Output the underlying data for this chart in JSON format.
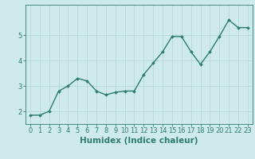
{
  "x": [
    0,
    1,
    2,
    3,
    4,
    5,
    6,
    7,
    8,
    9,
    10,
    11,
    12,
    13,
    14,
    15,
    16,
    17,
    18,
    19,
    20,
    21,
    22,
    23
  ],
  "y": [
    1.85,
    1.85,
    2.0,
    2.8,
    3.0,
    3.3,
    3.2,
    2.8,
    2.65,
    2.75,
    2.8,
    2.8,
    3.45,
    3.9,
    4.35,
    4.95,
    4.95,
    4.35,
    3.85,
    4.35,
    4.95,
    5.6,
    5.3,
    5.3
  ],
  "line_color": "#2e7d6e",
  "marker": "D",
  "marker_size": 2.0,
  "bg_color": "#ceeaea",
  "grid_color": "#b8d8d8",
  "xlabel": "Humidex (Indice chaleur)",
  "ylim": [
    1.5,
    6.2
  ],
  "xlim": [
    -0.5,
    23.5
  ],
  "yticks": [
    2,
    3,
    4,
    5
  ],
  "xticks": [
    0,
    1,
    2,
    3,
    4,
    5,
    6,
    7,
    8,
    9,
    10,
    11,
    12,
    13,
    14,
    15,
    16,
    17,
    18,
    19,
    20,
    21,
    22,
    23
  ],
  "xlabel_fontsize": 7.5,
  "tick_fontsize": 6.0,
  "line_width": 1.0
}
